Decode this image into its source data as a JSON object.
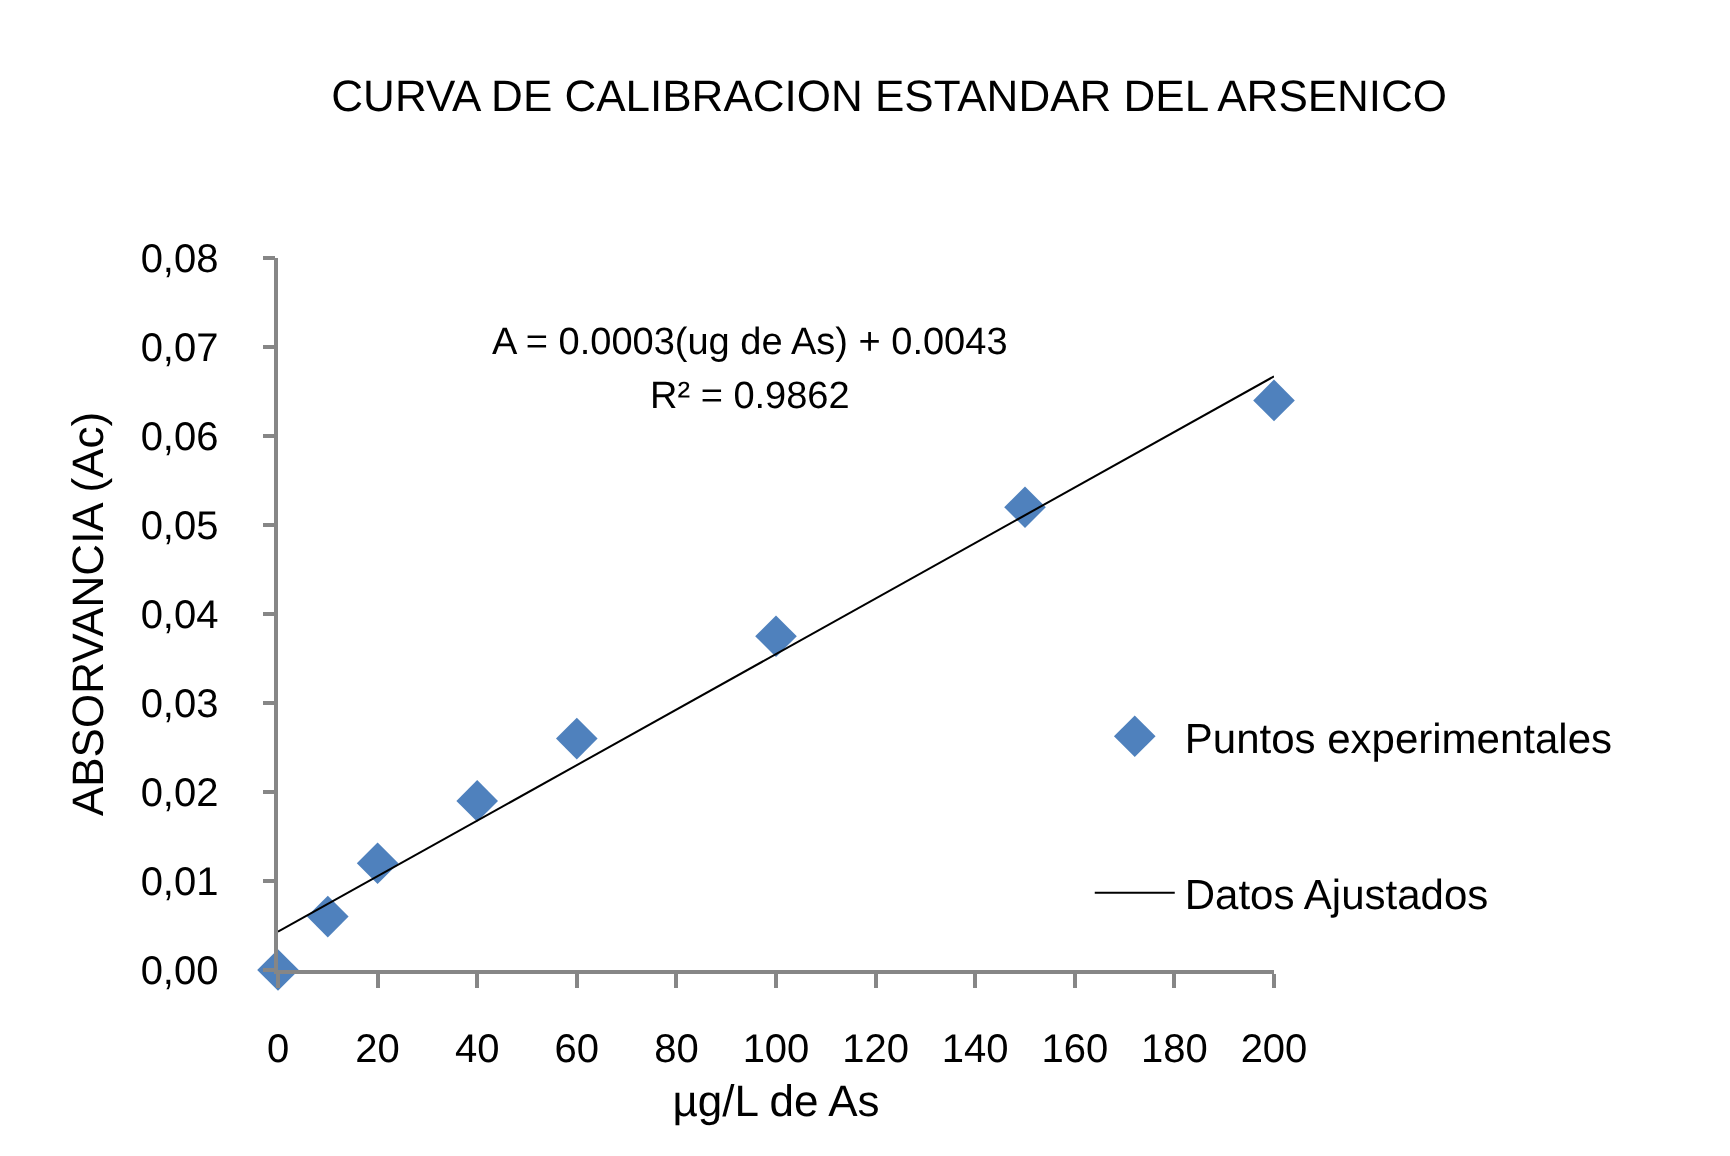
{
  "chart_data": {
    "type": "scatter",
    "title": "CURVA DE CALIBRACION ESTANDAR DEL ARSENICO",
    "xlabel": "µg/L de As",
    "ylabel": "ABSORVANCIA (Ac)",
    "xlim": [
      0,
      200
    ],
    "xticks": [
      0,
      20,
      40,
      60,
      80,
      100,
      120,
      140,
      160,
      180,
      200
    ],
    "ylim": [
      0,
      0.08
    ],
    "yticks": [
      {
        "value": 0,
        "label": "0,00"
      },
      {
        "value": 0.01,
        "label": "0,01"
      },
      {
        "value": 0.02,
        "label": "0,02"
      },
      {
        "value": 0.03,
        "label": "0,03"
      },
      {
        "value": 0.04,
        "label": "0,04"
      },
      {
        "value": 0.05,
        "label": "0,05"
      },
      {
        "value": 0.06,
        "label": "0,06"
      },
      {
        "value": 0.07,
        "label": "0,07"
      },
      {
        "value": 0.08,
        "label": "0,08"
      }
    ],
    "grid": false,
    "legend": "right",
    "series": [
      {
        "name": "Puntos experimentales",
        "color": "#4f81bd",
        "marker": "diamond",
        "x": [
          0,
          10,
          20,
          40,
          60,
          100,
          150,
          200
        ],
        "values": [
          0,
          0.006,
          0.012,
          0.019,
          0.026,
          0.0375,
          0.052,
          0.064
        ]
      },
      {
        "name": "Datos Ajustados",
        "type": "line",
        "color": "#000000",
        "line_style": "solid",
        "x": [
          0,
          200
        ],
        "values": [
          0.0043,
          0.0667
        ]
      }
    ],
    "annotations": [
      "A = 0.0003(ug de As) + 0.0043",
      "R² = 0.9862"
    ]
  }
}
